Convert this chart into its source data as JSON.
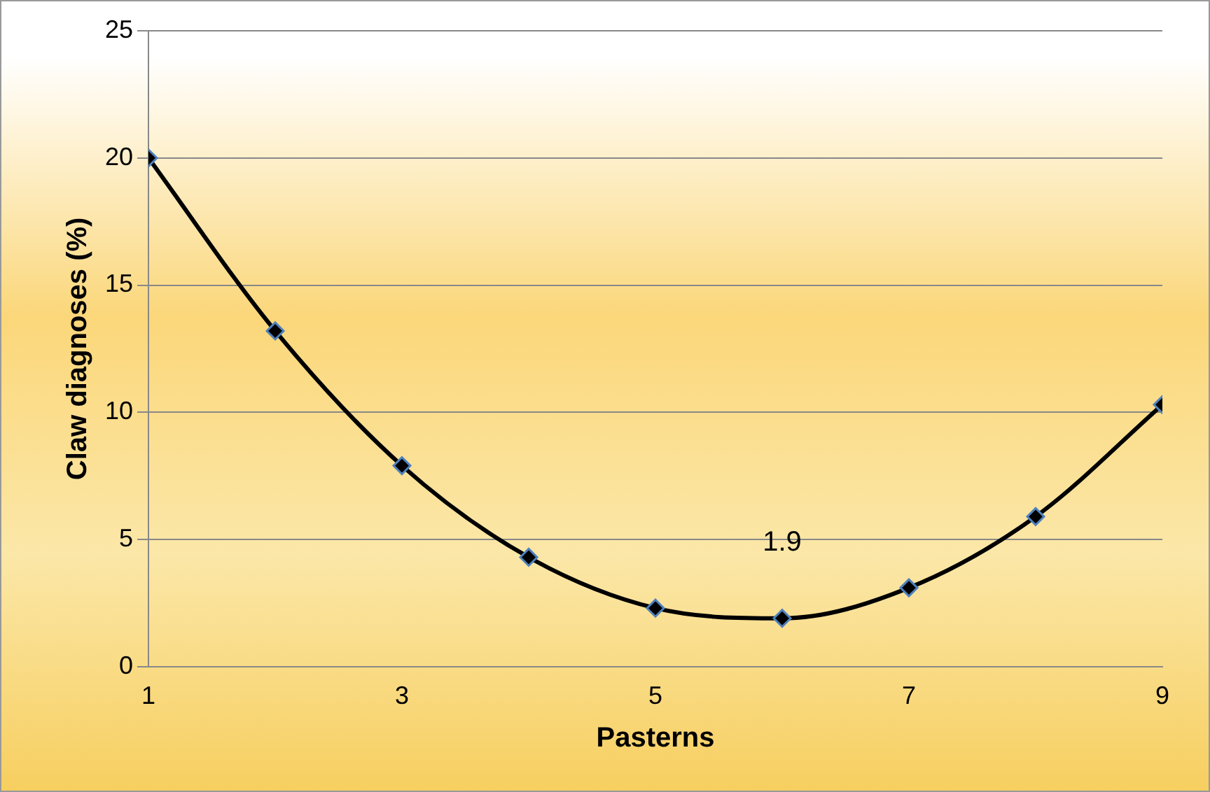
{
  "chart_data": {
    "type": "line",
    "xlabel": "Pasterns",
    "ylabel": "Claw diagnoses (%)",
    "x": [
      1,
      2,
      3,
      4,
      5,
      6,
      7,
      8,
      9
    ],
    "series": [
      {
        "color": "#000000",
        "values": [
          20,
          13.2,
          7.9,
          4.3,
          2.3,
          1.9,
          3.1,
          5.9,
          10.3
        ]
      }
    ],
    "xlim": [
      1,
      9
    ],
    "xticks": [
      1,
      3,
      5,
      7,
      9
    ],
    "ylim": [
      0,
      25
    ],
    "yticks": [
      0,
      5,
      10,
      15,
      20,
      25
    ],
    "grid": "y",
    "legend": false,
    "marker": "diamond",
    "line_style": "solid",
    "annotations": [
      {
        "text": "1.9",
        "x": 6,
        "y": 1.9
      }
    ]
  }
}
